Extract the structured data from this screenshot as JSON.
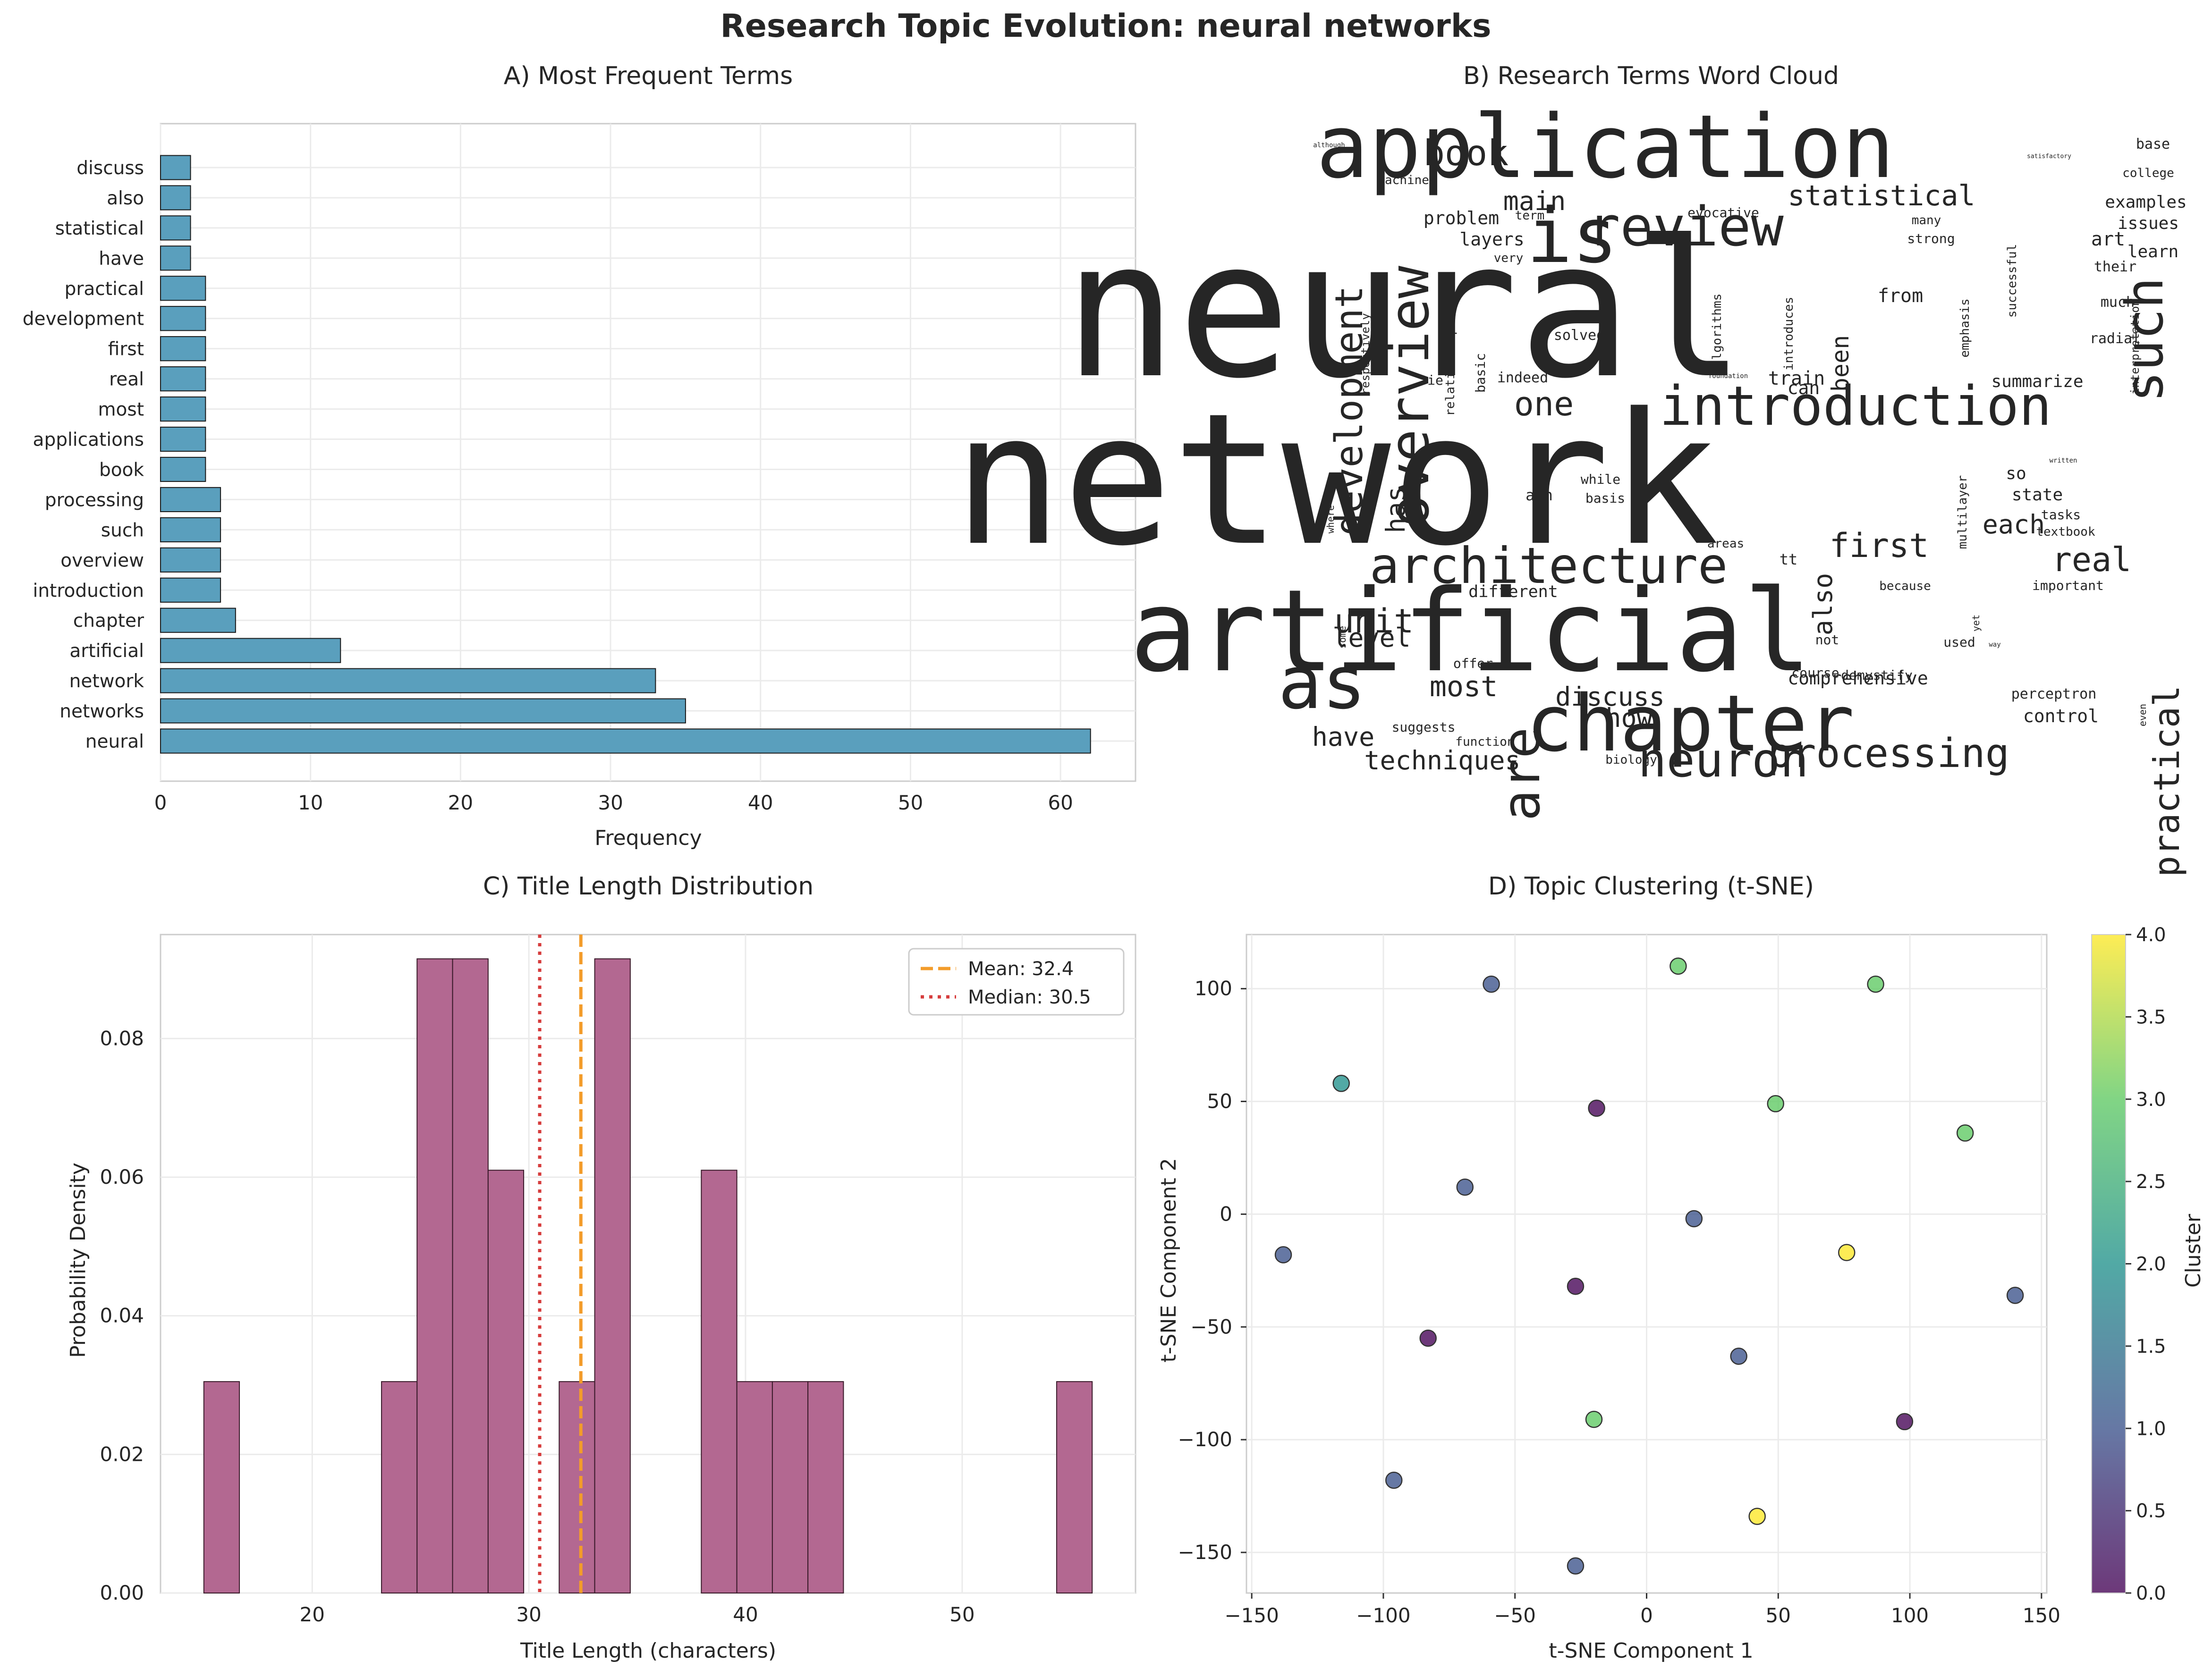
{
  "figure": {
    "title": "Research Topic Evolution: neural networks"
  },
  "colors": {
    "bar_fill": "#5a9fbd",
    "hist_fill": "#b36891",
    "mean_line": "#f39c2a",
    "median_line": "#d63c3c",
    "viridis": [
      "#440154",
      "#3b528b",
      "#21918c",
      "#5ec962",
      "#fde725"
    ]
  },
  "chart_data": [
    {
      "id": "A",
      "type": "bar",
      "orientation": "horizontal",
      "title": "A) Most Frequent Terms",
      "xlabel": "Frequency",
      "ylabel": "",
      "xlim": [
        0,
        65
      ],
      "xticks": [
        0,
        10,
        20,
        30,
        40,
        50,
        60
      ],
      "grid": true,
      "categories": [
        "neural",
        "networks",
        "network",
        "artificial",
        "chapter",
        "introduction",
        "overview",
        "such",
        "processing",
        "book",
        "applications",
        "most",
        "real",
        "first",
        "development",
        "practical",
        "have",
        "statistical",
        "also",
        "discuss"
      ],
      "values": [
        62,
        35,
        33,
        12,
        5,
        4,
        4,
        4,
        4,
        3,
        3,
        3,
        3,
        3,
        3,
        3,
        2,
        2,
        2,
        2
      ]
    },
    {
      "id": "B",
      "type": "wordcloud",
      "title": "B) Research Terms Word Cloud",
      "words": [
        {
          "text": "neural",
          "size": 1.0,
          "color": 0
        },
        {
          "text": "network",
          "size": 0.95,
          "color": 1
        },
        {
          "text": "artificial",
          "size": 0.62,
          "color": 0
        },
        {
          "text": "application",
          "size": 0.45,
          "color": 1
        },
        {
          "text": "chapter",
          "size": 0.46,
          "color": 2
        },
        {
          "text": "is",
          "size": 0.45,
          "color": 1
        },
        {
          "text": "as",
          "size": 0.44,
          "color": 2
        },
        {
          "text": "review",
          "size": 0.3,
          "color": 2
        },
        {
          "text": "introduction",
          "size": 0.3,
          "color": 2
        },
        {
          "text": "overview",
          "size": 0.3,
          "color": 2
        },
        {
          "text": "architecture",
          "size": 0.3,
          "color": 4
        },
        {
          "text": "such",
          "size": 0.3,
          "color": 4
        },
        {
          "text": "are",
          "size": 0.3,
          "color": 1
        },
        {
          "text": "neuron",
          "size": 0.28,
          "color": 1
        },
        {
          "text": "processing",
          "size": 0.24,
          "color": 2
        },
        {
          "text": "development",
          "size": 0.22,
          "color": 1
        },
        {
          "text": "practical",
          "size": 0.22,
          "color": 2
        },
        {
          "text": "book",
          "size": 0.2,
          "color": 2
        },
        {
          "text": "statistical",
          "size": 0.17,
          "color": 2
        },
        {
          "text": "first",
          "size": 0.2,
          "color": 1
        },
        {
          "text": "real",
          "size": 0.2,
          "color": 1
        },
        {
          "text": "one",
          "size": 0.2,
          "color": 1
        },
        {
          "text": "each",
          "size": 0.17,
          "color": 2
        },
        {
          "text": "unit",
          "size": 0.2,
          "color": 2
        },
        {
          "text": "most",
          "size": 0.18,
          "color": 1
        },
        {
          "text": "discuss",
          "size": 0.17,
          "color": 1
        },
        {
          "text": "level",
          "size": 0.17,
          "color": 2
        },
        {
          "text": "techniques",
          "size": 0.16,
          "color": 2
        },
        {
          "text": "have",
          "size": 0.16,
          "color": 2
        },
        {
          "text": "how",
          "size": 0.16,
          "color": 4
        },
        {
          "text": "main",
          "size": 0.16,
          "color": 1
        },
        {
          "text": "been",
          "size": 0.15,
          "color": 2
        },
        {
          "text": "also",
          "size": 0.15,
          "color": 2
        },
        {
          "text": "has",
          "size": 0.15,
          "color": 1
        },
        {
          "text": "comprehensive",
          "size": 0.1,
          "color": 3
        },
        {
          "text": "examples",
          "size": 0.1,
          "color": 1
        },
        {
          "text": "issues",
          "size": 0.1,
          "color": 1
        },
        {
          "text": "art",
          "size": 0.1,
          "color": 2
        },
        {
          "text": "learn",
          "size": 0.1,
          "color": 1
        },
        {
          "text": "summarize",
          "size": 0.1,
          "color": 4
        },
        {
          "text": "state",
          "size": 0.1,
          "color": 2
        },
        {
          "text": "so",
          "size": 0.1,
          "color": 1
        },
        {
          "text": "layers",
          "size": 0.1,
          "color": 3
        },
        {
          "text": "problem",
          "size": 0.1,
          "color": 3
        },
        {
          "text": "train",
          "size": 0.1,
          "color": 1
        },
        {
          "text": "from",
          "size": 0.1,
          "color": 1
        },
        {
          "text": "can",
          "size": 0.1,
          "color": 1
        },
        {
          "text": "control",
          "size": 0.1,
          "color": 1
        },
        {
          "text": "perceptron",
          "size": 0.08,
          "color": 0
        },
        {
          "text": "different",
          "size": 0.09,
          "color": 3
        },
        {
          "text": "base",
          "size": 0.08,
          "color": 4
        },
        {
          "text": "college",
          "size": 0.07,
          "color": 4
        },
        {
          "text": "machines",
          "size": 0.07,
          "color": 1
        },
        {
          "text": "term",
          "size": 0.07,
          "color": 1
        },
        {
          "text": "evocative",
          "size": 0.08,
          "color": 0
        },
        {
          "text": "many",
          "size": 0.07,
          "color": 1
        },
        {
          "text": "strong",
          "size": 0.07,
          "color": 1
        },
        {
          "text": "very",
          "size": 0.07,
          "color": 1
        },
        {
          "text": "recognition",
          "size": 0.07,
          "color": 1
        },
        {
          "text": "algorithms",
          "size": 0.07,
          "color": 2
        },
        {
          "text": "introduces",
          "size": 0.07,
          "color": 1
        },
        {
          "text": "emphasis",
          "size": 0.07,
          "color": 2
        },
        {
          "text": "successful",
          "size": 0.07,
          "color": 3
        },
        {
          "text": "their",
          "size": 0.08,
          "color": 2
        },
        {
          "text": "much",
          "size": 0.08,
          "color": 4
        },
        {
          "text": "radial",
          "size": 0.08,
          "color": 1
        },
        {
          "text": "interpretation",
          "size": 0.07,
          "color": 2
        },
        {
          "text": "solved",
          "size": 0.08,
          "color": 3
        },
        {
          "text": "indeed",
          "size": 0.08,
          "color": 1
        },
        {
          "text": "basic",
          "size": 0.08,
          "color": 1
        },
        {
          "text": "relationships",
          "size": 0.07,
          "color": 0
        },
        {
          "text": "respectively",
          "size": 0.07,
          "color": 1
        },
        {
          "text": "ie",
          "size": 0.07,
          "color": 1
        },
        {
          "text": "foundation",
          "size": 0.05,
          "color": 1
        },
        {
          "text": "ann",
          "size": 0.08,
          "color": 1
        },
        {
          "text": "while",
          "size": 0.07,
          "color": 3
        },
        {
          "text": "basis",
          "size": 0.07,
          "color": 1
        },
        {
          "text": "multilayer",
          "size": 0.07,
          "color": 1
        },
        {
          "text": "tasks",
          "size": 0.07,
          "color": 1
        },
        {
          "text": "textbook",
          "size": 0.07,
          "color": 4
        },
        {
          "text": "written",
          "size": 0.05,
          "color": 1
        },
        {
          "text": "areas",
          "size": 0.07,
          "color": 4
        },
        {
          "text": "because",
          "size": 0.07,
          "color": 4
        },
        {
          "text": "important",
          "size": 0.07,
          "color": 2
        },
        {
          "text": "tt",
          "size": 0.08,
          "color": 1
        },
        {
          "text": "where",
          "size": 0.06,
          "color": 4
        },
        {
          "text": "some",
          "size": 0.06,
          "color": 4
        },
        {
          "text": "offer",
          "size": 0.07,
          "color": 4
        },
        {
          "text": "not",
          "size": 0.07,
          "color": 3
        },
        {
          "text": "used",
          "size": 0.07,
          "color": 4
        },
        {
          "text": "yet",
          "size": 0.06,
          "color": 4
        },
        {
          "text": "way",
          "size": 0.05,
          "color": 4
        },
        {
          "text": "course",
          "size": 0.07,
          "color": 3
        },
        {
          "text": "demystify",
          "size": 0.07,
          "color": 0
        },
        {
          "text": "suggests",
          "size": 0.07,
          "color": 0
        },
        {
          "text": "function",
          "size": 0.07,
          "color": 0
        },
        {
          "text": "biology",
          "size": 0.06,
          "color": 3
        },
        {
          "text": "even",
          "size": 0.06,
          "color": 4
        },
        {
          "text": "although",
          "size": 0.05,
          "color": 2
        },
        {
          "text": "satisfactory",
          "size": 0.05,
          "color": 2
        }
      ]
    },
    {
      "id": "C",
      "type": "histogram",
      "title": "C) Title Length Distribution",
      "xlabel": "Title Length (characters)",
      "ylabel": "Probability Density",
      "xlim": [
        13,
        58
      ],
      "ylim": [
        0,
        0.095
      ],
      "xticks": [
        20,
        30,
        40,
        50
      ],
      "yticks": [
        0.0,
        0.02,
        0.04,
        0.06,
        0.08
      ],
      "ytick_labels": [
        "0.00",
        "0.02",
        "0.04",
        "0.06",
        "0.08"
      ],
      "grid": true,
      "bins": [
        {
          "x0": 15.0,
          "x1": 16.64,
          "density": 0.0305
        },
        {
          "x0": 23.2,
          "x1": 24.84,
          "density": 0.0305
        },
        {
          "x0": 24.84,
          "x1": 26.48,
          "density": 0.0915
        },
        {
          "x0": 26.48,
          "x1": 28.12,
          "density": 0.0915
        },
        {
          "x0": 28.12,
          "x1": 29.76,
          "density": 0.061
        },
        {
          "x0": 31.4,
          "x1": 33.04,
          "density": 0.0305
        },
        {
          "x0": 33.04,
          "x1": 34.68,
          "density": 0.0915
        },
        {
          "x0": 37.96,
          "x1": 39.6,
          "density": 0.061
        },
        {
          "x0": 39.6,
          "x1": 41.24,
          "density": 0.0305
        },
        {
          "x0": 41.24,
          "x1": 42.88,
          "density": 0.0305
        },
        {
          "x0": 42.88,
          "x1": 44.52,
          "density": 0.0305
        },
        {
          "x0": 54.36,
          "x1": 56.0,
          "density": 0.0305
        }
      ],
      "mean": 32.4,
      "median": 30.5,
      "legend": [
        {
          "label": "Mean: 32.4",
          "style": "dashed"
        },
        {
          "label": "Median: 30.5",
          "style": "dotted"
        }
      ],
      "legend_position": "top-right"
    },
    {
      "id": "D",
      "type": "scatter",
      "title": "D) Topic Clustering (t-SNE)",
      "xlabel": "t-SNE Component 1",
      "ylabel": "t-SNE Component 2",
      "xlim": [
        -152,
        152
      ],
      "ylim": [
        -168,
        124
      ],
      "xticks": [
        -150,
        -100,
        -50,
        0,
        50,
        100,
        150
      ],
      "yticks": [
        -150,
        -100,
        -50,
        0,
        50,
        100
      ],
      "grid": true,
      "colorbar": {
        "label": "Cluster",
        "range": [
          0,
          4
        ],
        "ticks": [
          "0.0",
          "0.5",
          "1.0",
          "1.5",
          "2.0",
          "2.5",
          "3.0",
          "3.5",
          "4.0"
        ]
      },
      "points": [
        {
          "x": -59,
          "y": 102,
          "cluster": 1
        },
        {
          "x": 12,
          "y": 110,
          "cluster": 3
        },
        {
          "x": 87,
          "y": 102,
          "cluster": 3
        },
        {
          "x": -116,
          "y": 58,
          "cluster": 2
        },
        {
          "x": -19,
          "y": 47,
          "cluster": 0
        },
        {
          "x": 49,
          "y": 49,
          "cluster": 3
        },
        {
          "x": 121,
          "y": 36,
          "cluster": 3
        },
        {
          "x": -69,
          "y": 12,
          "cluster": 1
        },
        {
          "x": 18,
          "y": -2,
          "cluster": 1
        },
        {
          "x": 76,
          "y": -17,
          "cluster": 4
        },
        {
          "x": -138,
          "y": -18,
          "cluster": 1
        },
        {
          "x": -27,
          "y": -32,
          "cluster": 0
        },
        {
          "x": 140,
          "y": -36,
          "cluster": 1
        },
        {
          "x": -83,
          "y": -55,
          "cluster": 0
        },
        {
          "x": 35,
          "y": -63,
          "cluster": 1
        },
        {
          "x": -20,
          "y": -91,
          "cluster": 3
        },
        {
          "x": 98,
          "y": -92,
          "cluster": 0
        },
        {
          "x": -96,
          "y": -118,
          "cluster": 1
        },
        {
          "x": 42,
          "y": -134,
          "cluster": 4
        },
        {
          "x": -27,
          "y": -156,
          "cluster": 1
        }
      ]
    }
  ]
}
